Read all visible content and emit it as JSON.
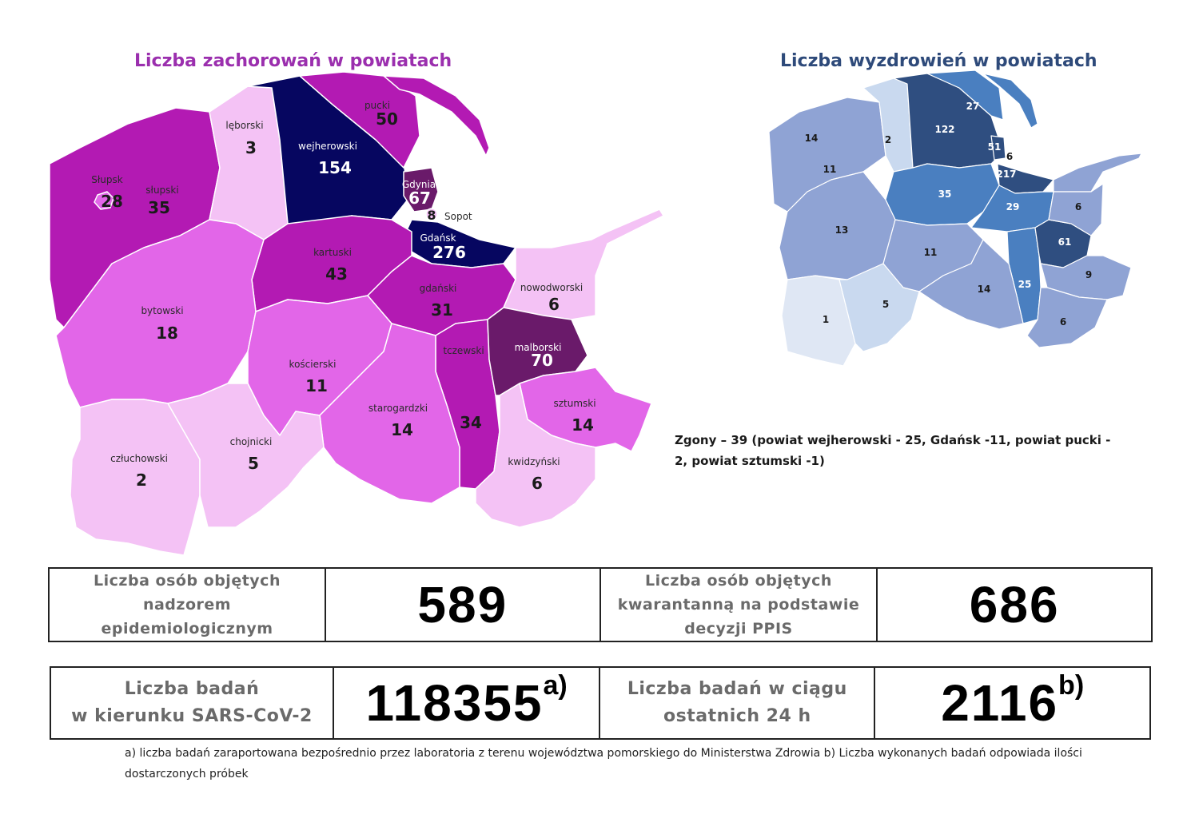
{
  "cases_map": {
    "title": "Liczba zachorowań w powiatach",
    "colors": {
      "c1": "#060660",
      "c2": "#b31ab3",
      "c3": "#e266e8",
      "c4": "#f4c2f5",
      "c5": "#6a1a6a"
    },
    "districts": [
      {
        "name": "lęborski",
        "value": "3"
      },
      {
        "name": "wejherowski",
        "value": "154"
      },
      {
        "name": "pucki",
        "value": "50"
      },
      {
        "name": "Słupsk",
        "value": "28"
      },
      {
        "name": "słupski",
        "value": "35"
      },
      {
        "name": "Gdynia",
        "value": "67"
      },
      {
        "name": "Sopot",
        "value": "8"
      },
      {
        "name": "Gdańsk",
        "value": "276"
      },
      {
        "name": "kartuski",
        "value": "43"
      },
      {
        "name": "gdański",
        "value": "31"
      },
      {
        "name": "nowodworski",
        "value": "6"
      },
      {
        "name": "bytowski",
        "value": "18"
      },
      {
        "name": "kościerski",
        "value": "11"
      },
      {
        "name": "tczewski",
        "value": "34"
      },
      {
        "name": "malborski",
        "value": "70"
      },
      {
        "name": "starogardzki",
        "value": "14"
      },
      {
        "name": "sztumski",
        "value": "14"
      },
      {
        "name": "człuchowski",
        "value": "2"
      },
      {
        "name": "chojnicki",
        "value": "5"
      },
      {
        "name": "kwidzyński",
        "value": "6"
      }
    ]
  },
  "recoveries_map": {
    "title": "Liczba wyzdrowień w powiatach",
    "values": [
      "14",
      "11",
      "13",
      "2",
      "122",
      "27",
      "51",
      "6",
      "217",
      "35",
      "29",
      "6",
      "61",
      "11",
      "14",
      "25",
      "9",
      "6",
      "1",
      "5"
    ]
  },
  "deaths_note": "Zgony – 39 (powiat wejherowski - 25, Gdańsk -11, powiat pucki - 2, powiat sztumski -1)",
  "stats": {
    "surveillance_label": "Liczba osób objętych nadzorem epidemiologicznym",
    "surveillance_value": "589",
    "quarantine_label": "Liczba osób objętych kwarantanną na podstawie decyzji PPIS",
    "quarantine_value": "686",
    "tests_label_1": "Liczba badań",
    "tests_label_2": "w kierunku SARS-CoV-2",
    "tests_value": "118355",
    "tests_sup": "a)",
    "tests24_label_1": "Liczba badań w ciągu",
    "tests24_label_2": "ostatnich 24 h",
    "tests24_value": "2116",
    "tests24_sup": "b)"
  },
  "footnote": "a) liczba badań zaraportowana bezpośrednio przez laboratoria z terenu województwa pomorskiego do Ministerstwa Zdrowia b) Liczba wykonanych badań odpowiada ilości dostarczonych próbek"
}
